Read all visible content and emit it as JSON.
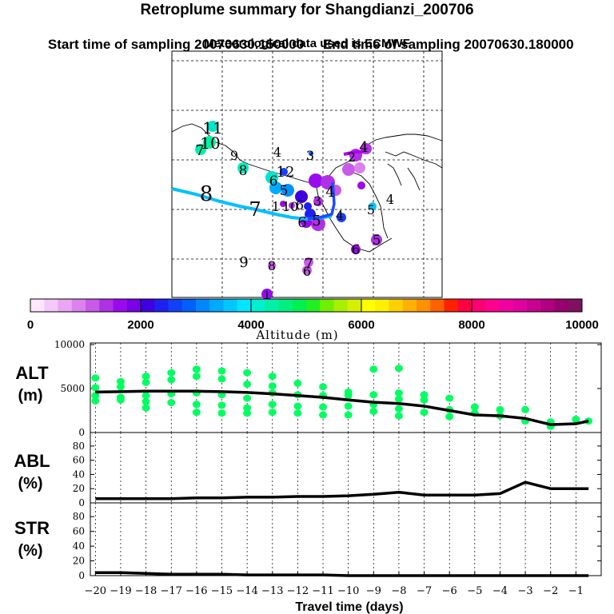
{
  "header": {
    "title": "Retroplume summary for Shangdianzi_200706",
    "start_label": "Start time of sampling 20070630.150000",
    "end_label": "End time of sampling 20070630.180000",
    "met_label": "Meteorological data used is ECMWF"
  },
  "colorbar": {
    "label": "Altitude (m)",
    "tick_labels": [
      "0",
      "2000",
      "4000",
      "6000",
      "8000",
      "10000"
    ],
    "colors": [
      "#ffe6ff",
      "#f4c8f8",
      "#eaa6f2",
      "#dc82ee",
      "#c85ae8",
      "#b030e6",
      "#9a0aee",
      "#7a00e8",
      "#3e00e0",
      "#1e20f0",
      "#1040f8",
      "#0060ff",
      "#0086ff",
      "#00aaff",
      "#00c8ff",
      "#00e6ff",
      "#00f0d0",
      "#00f0a8",
      "#00f080",
      "#00f050",
      "#20f020",
      "#70f000",
      "#a8f000",
      "#d8f000",
      "#ffff00",
      "#fff000",
      "#ffd000",
      "#ffb000",
      "#ff9000",
      "#ff6000",
      "#ff2000",
      "#ff0040",
      "#ff0070",
      "#ff0090",
      "#f000a0",
      "#e000a0",
      "#c80090",
      "#b00080",
      "#980070",
      "#801060"
    ]
  },
  "map": {
    "labels": [
      {
        "t": "11",
        "c": "#000000"
      },
      {
        "t": "10",
        "c": "#000000"
      },
      {
        "t": "7",
        "c": "#000000"
      },
      {
        "t": "9",
        "c": "#000000"
      },
      {
        "t": "8",
        "c": "#000000"
      },
      {
        "t": "4",
        "c": "#000000"
      },
      {
        "t": "3",
        "c": "#000000"
      },
      {
        "t": "12",
        "c": "#000000"
      },
      {
        "t": "6",
        "c": "#000000"
      },
      {
        "t": "5",
        "c": "#000000"
      },
      {
        "t": "8",
        "c": "#000000"
      },
      {
        "t": "7",
        "c": "#000000"
      },
      {
        "t": "1",
        "c": "#000000"
      },
      {
        "t": "10",
        "c": "#000000"
      },
      {
        "t": "6",
        "c": "#000000"
      },
      {
        "t": "3",
        "c": "#000000"
      },
      {
        "t": "4",
        "c": "#000000"
      },
      {
        "t": "6",
        "c": "#000000"
      },
      {
        "t": "5",
        "c": "#000000"
      },
      {
        "t": "4",
        "c": "#000000"
      },
      {
        "t": "5",
        "c": "#000000"
      },
      {
        "t": "4",
        "c": "#000000"
      },
      {
        "t": "5",
        "c": "#000000"
      },
      {
        "t": "6",
        "c": "#000000"
      },
      {
        "t": "9",
        "c": "#000000"
      },
      {
        "t": "8",
        "c": "#000000"
      },
      {
        "t": "7",
        "c": "#000000"
      },
      {
        "t": "6",
        "c": "#000000"
      },
      {
        "t": "1",
        "c": "#000000"
      },
      {
        "t": "2",
        "c": "#000000"
      },
      {
        "t": "4",
        "c": "#000000"
      }
    ]
  },
  "chart_data": [
    {
      "type": "line",
      "name": "ALT",
      "ylabel": "ALT\n(m)",
      "ylim": [
        0,
        10000
      ],
      "yticks": [
        "0",
        "5000",
        "10000"
      ],
      "x": [
        -20,
        -19,
        -18,
        -17,
        -16,
        -15,
        -14,
        -13,
        -12,
        -11,
        -10,
        -9,
        -8,
        -7,
        -6,
        -5,
        -4,
        -3,
        -2,
        -1,
        -0.5
      ],
      "values": [
        4600,
        4650,
        4700,
        4700,
        4700,
        4650,
        4550,
        4400,
        4200,
        4000,
        3700,
        3450,
        3300,
        3000,
        2500,
        2000,
        1900,
        1600,
        900,
        1000,
        1300
      ],
      "scatter_color": "#00ff60",
      "scatter_points": [
        [
          -20,
          6200
        ],
        [
          -20,
          5100
        ],
        [
          -20,
          4200
        ],
        [
          -20,
          3600
        ],
        [
          -19,
          5800
        ],
        [
          -19,
          5200
        ],
        [
          -19,
          4000
        ],
        [
          -19,
          3700
        ],
        [
          -18,
          6400
        ],
        [
          -18,
          5700
        ],
        [
          -18,
          4200
        ],
        [
          -18,
          3500
        ],
        [
          -18,
          2800
        ],
        [
          -17,
          6800
        ],
        [
          -17,
          6000
        ],
        [
          -17,
          4400
        ],
        [
          -17,
          3400
        ],
        [
          -16,
          7200
        ],
        [
          -16,
          6400
        ],
        [
          -16,
          4500
        ],
        [
          -16,
          3200
        ],
        [
          -16,
          2300
        ],
        [
          -15,
          7000
        ],
        [
          -15,
          6100
        ],
        [
          -15,
          4300
        ],
        [
          -15,
          3100
        ],
        [
          -15,
          2200
        ],
        [
          -14,
          6800
        ],
        [
          -14,
          5500
        ],
        [
          -14,
          3900
        ],
        [
          -14,
          2800
        ],
        [
          -14,
          2200
        ],
        [
          -13,
          6400
        ],
        [
          -13,
          5300
        ],
        [
          -13,
          4500
        ],
        [
          -13,
          3200
        ],
        [
          -13,
          2300
        ],
        [
          -12,
          5600
        ],
        [
          -12,
          4300
        ],
        [
          -12,
          3000
        ],
        [
          -12,
          2200
        ],
        [
          -11,
          5200
        ],
        [
          -11,
          4200
        ],
        [
          -11,
          2900
        ],
        [
          -11,
          2000
        ],
        [
          -10,
          4600
        ],
        [
          -10,
          4200
        ],
        [
          -10,
          3000
        ],
        [
          -10,
          2000
        ],
        [
          -9,
          7200
        ],
        [
          -9,
          4300
        ],
        [
          -9,
          3200
        ],
        [
          -9,
          2400
        ],
        [
          -8,
          7300
        ],
        [
          -8,
          4500
        ],
        [
          -8,
          3800
        ],
        [
          -8,
          2700
        ],
        [
          -8,
          1900
        ],
        [
          -7,
          4300
        ],
        [
          -7,
          3700
        ],
        [
          -7,
          2300
        ],
        [
          -6,
          3900
        ],
        [
          -6,
          2600
        ],
        [
          -6,
          1800
        ],
        [
          -5,
          2900
        ],
        [
          -5,
          2200
        ],
        [
          -4,
          2600
        ],
        [
          -4,
          1900
        ],
        [
          -3,
          2600
        ],
        [
          -3,
          1300
        ],
        [
          -2,
          1200
        ],
        [
          -2,
          700
        ],
        [
          -1,
          1500
        ],
        [
          -0.5,
          1300
        ]
      ]
    },
    {
      "type": "line",
      "name": "ABL",
      "ylabel": "ABL\n(%)",
      "ylim": [
        0,
        90
      ],
      "yticks": [
        "0",
        "20",
        "40",
        "60",
        "80"
      ],
      "x": [
        -20,
        -19,
        -18,
        -17,
        -16,
        -15,
        -14,
        -13,
        -12,
        -11,
        -10,
        -9,
        -8,
        -7,
        -6,
        -5,
        -4,
        -3,
        -2,
        -1,
        -0.5
      ],
      "values": [
        6,
        6,
        6,
        6,
        7,
        7,
        8,
        8,
        9,
        9,
        10,
        12,
        15,
        11,
        11,
        11,
        13,
        29,
        20,
        20,
        20
      ]
    },
    {
      "type": "line",
      "name": "STR",
      "ylabel": "STR\n(%)",
      "ylim": [
        0,
        90
      ],
      "yticks": [
        "0",
        "20",
        "40",
        "60",
        "80"
      ],
      "x": [
        -20,
        -19,
        -18,
        -17,
        -16,
        -15,
        -14,
        -13,
        -12,
        -11,
        -10,
        -9,
        -8,
        -7,
        -6,
        -5,
        -4,
        -3,
        -2,
        -1,
        -0.5
      ],
      "values": [
        4,
        4,
        3,
        2,
        2,
        2,
        1,
        1,
        1,
        1,
        0,
        0,
        0,
        0,
        0,
        0,
        0,
        0,
        0,
        0,
        0
      ]
    }
  ],
  "xaxis": {
    "label": "Travel time (days)",
    "tick_labels": [
      "−20",
      "−19",
      "−18",
      "−17",
      "−16",
      "−15",
      "−14",
      "−13",
      "−12",
      "−11",
      "−10",
      "−9",
      "−8",
      "−7",
      "−6",
      "−5",
      "−4",
      "−3",
      "−2",
      "−1"
    ]
  }
}
